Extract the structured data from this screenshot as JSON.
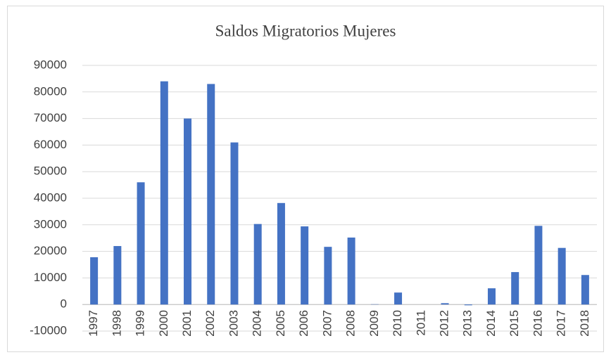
{
  "chart_data": {
    "type": "bar",
    "title": "Saldos Migratorios Mujeres",
    "categories": [
      "1997",
      "1998",
      "1999",
      "2000",
      "2001",
      "2002",
      "2003",
      "2004",
      "2005",
      "2006",
      "2007",
      "2008",
      "2009",
      "2010",
      "2011",
      "2012",
      "2013",
      "2014",
      "2015",
      "2016",
      "2017",
      "2018"
    ],
    "values": [
      17800,
      22000,
      46000,
      84000,
      70000,
      83000,
      61000,
      30300,
      38200,
      29400,
      21700,
      25200,
      100,
      4500,
      0,
      500,
      -300,
      6100,
      12200,
      29600,
      21300,
      11100
    ],
    "color": "#4472c4",
    "ylim": [
      -10000,
      90000
    ],
    "yticks": [
      -10000,
      0,
      10000,
      20000,
      30000,
      40000,
      50000,
      60000,
      70000,
      80000,
      90000
    ],
    "grid": true
  }
}
